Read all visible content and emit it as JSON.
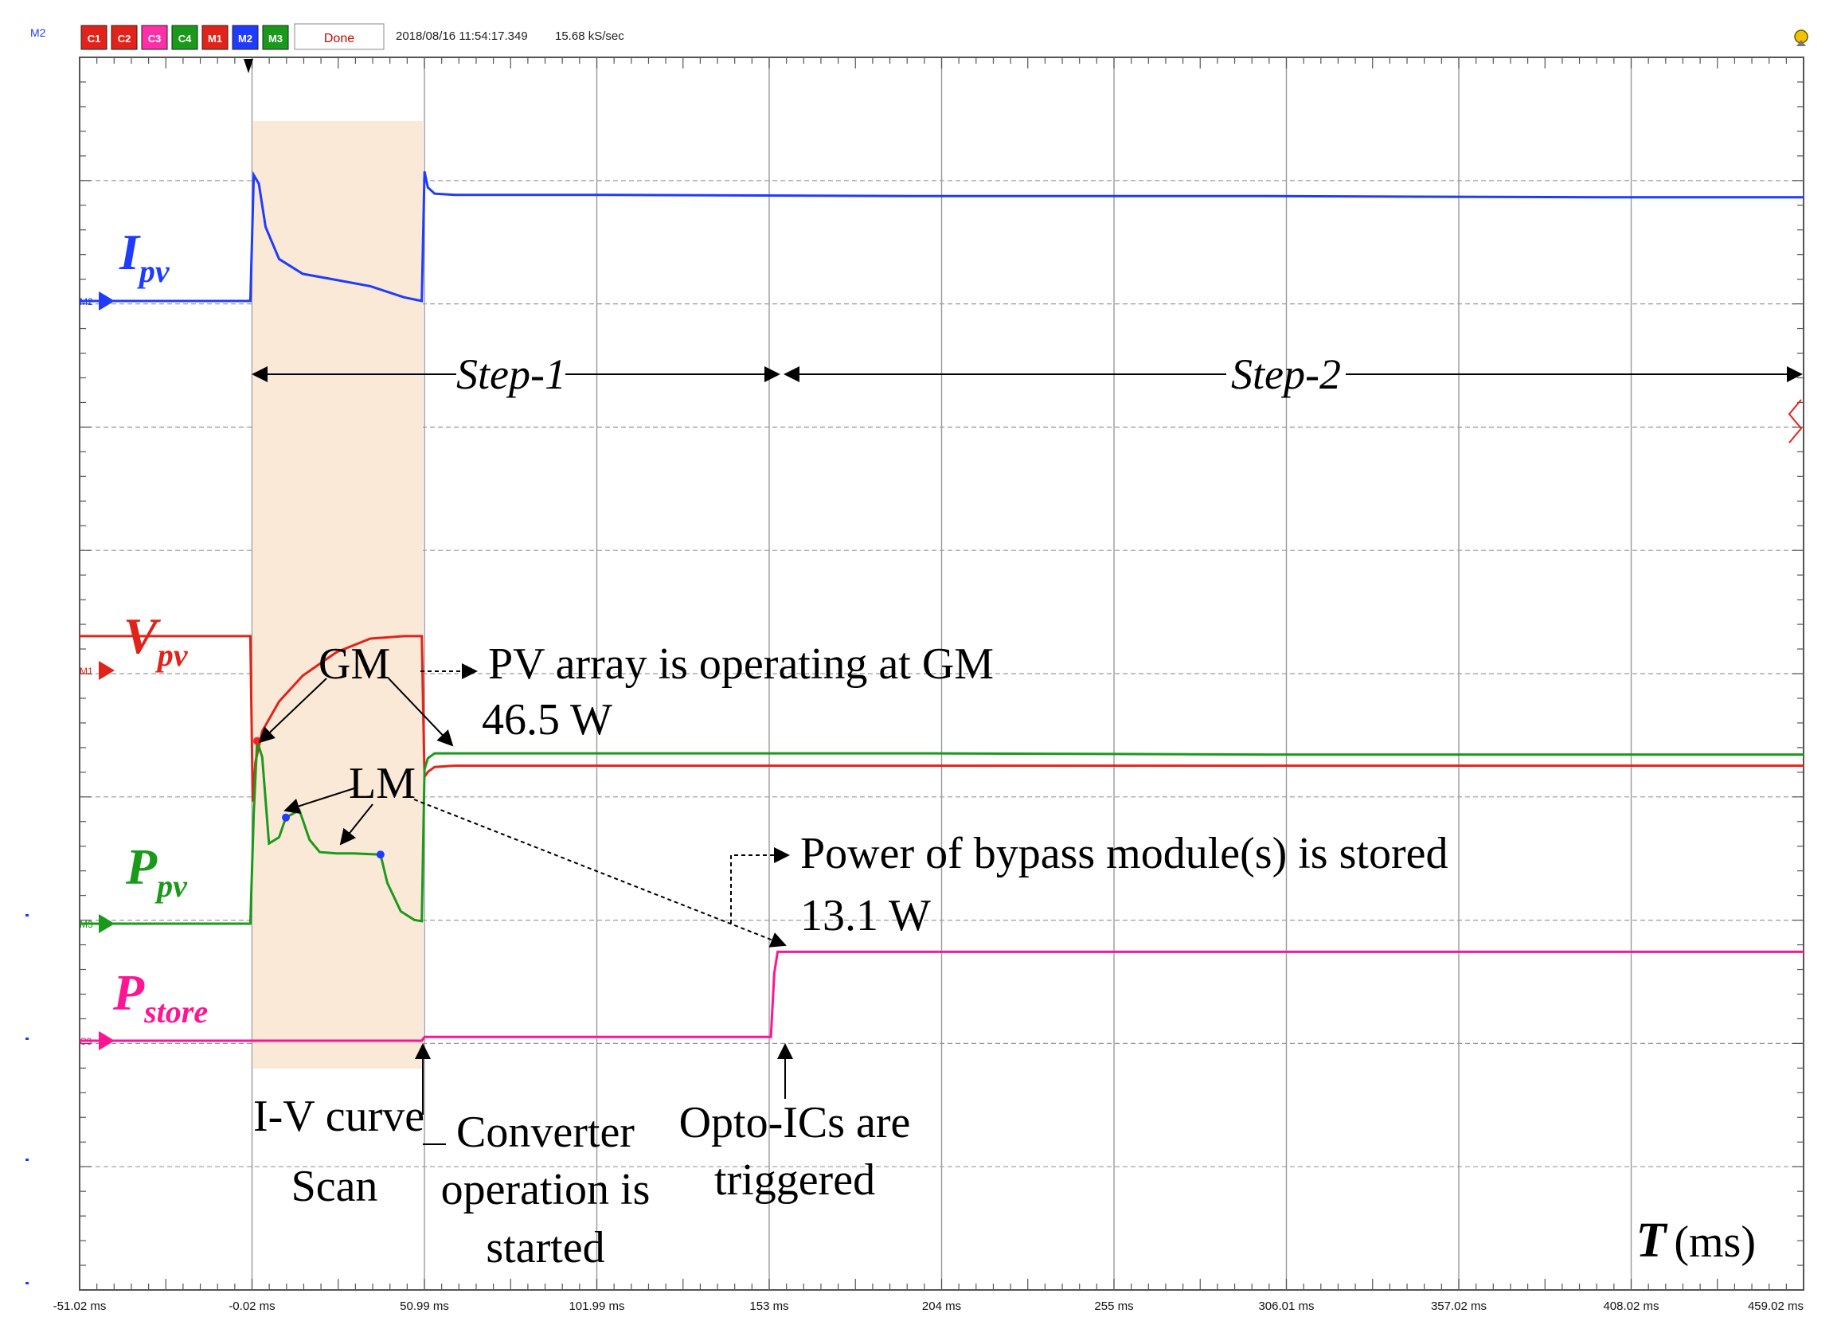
{
  "toolbar": {
    "top_label": "M2",
    "buttons": [
      {
        "label": "C1",
        "color": "#e2231a"
      },
      {
        "label": "C2",
        "color": "#e2231a"
      },
      {
        "label": "C3",
        "color": "#ff2fa8"
      },
      {
        "label": "C4",
        "color": "#1a9a1a"
      },
      {
        "label": "M1",
        "color": "#e2231a"
      },
      {
        "label": "M2",
        "color": "#1f3bff"
      },
      {
        "label": "M3",
        "color": "#1a9a1a"
      }
    ],
    "status": "Done",
    "timestamp": "2018/08/16 11:54:17.349",
    "sample_rate": "15.68 kS/sec"
  },
  "chart_data": {
    "type": "line",
    "x_ticks": [
      "-51.02 ms",
      "-0.02 ms",
      "50.99 ms",
      "101.99 ms",
      "153 ms",
      "204 ms",
      "255 ms",
      "306.01 ms",
      "357.02 ms",
      "408.02 ms",
      "459.02 ms"
    ],
    "xlim": [
      -51.02,
      459.02
    ],
    "x_unit": "ms",
    "grid": true,
    "series": [
      {
        "name": "I",
        "sub": "pv",
        "color": "#1f3bff",
        "marker": "M2",
        "x": [
          -51.02,
          -0.5,
          0.5,
          2,
          4,
          8,
          15,
          25,
          35,
          45,
          50.2,
          51,
          52,
          54,
          60,
          100,
          200,
          300,
          400,
          459.02
        ],
        "y": [
          0,
          0,
          1.02,
          0.95,
          0.6,
          0.34,
          0.22,
          0.17,
          0.12,
          0.03,
          0,
          1.05,
          0.92,
          0.87,
          0.86,
          0.86,
          0.85,
          0.85,
          0.84,
          0.84
        ]
      },
      {
        "name": "V",
        "sub": "pv",
        "color": "#e2231a",
        "marker": "M1",
        "x": [
          -51.02,
          -0.5,
          0.2,
          1,
          3,
          8,
          15,
          25,
          35,
          45,
          50.2,
          51,
          52,
          54,
          60,
          100,
          200,
          300,
          400,
          459.02
        ],
        "y": [
          1.62,
          1.62,
          0.28,
          0.6,
          0.85,
          1.09,
          1.3,
          1.49,
          1.6,
          1.62,
          1.62,
          0.48,
          0.52,
          0.56,
          0.57,
          0.57,
          0.57,
          0.57,
          0.57,
          0.57
        ]
      },
      {
        "name": "P",
        "sub": "pv",
        "color": "#1a9a1a",
        "marker": "M3",
        "x": [
          -51.02,
          -0.5,
          0.5,
          1.5,
          3,
          5,
          8,
          10,
          14,
          17,
          20,
          25,
          30,
          38,
          40,
          44,
          48,
          50.2,
          51,
          52,
          54,
          60,
          100,
          200,
          300,
          400,
          459.02
        ],
        "y": [
          0,
          0,
          0.9,
          1.48,
          1.35,
          0.65,
          0.7,
          0.86,
          0.92,
          0.68,
          0.58,
          0.57,
          0.57,
          0.56,
          0.33,
          0.1,
          0.03,
          0.02,
          1.25,
          1.34,
          1.38,
          1.38,
          1.38,
          1.38,
          1.37,
          1.37,
          1.37
        ]
      },
      {
        "name": "P",
        "sub": "store",
        "color": "#ff1493",
        "marker": "C3",
        "x": [
          -51.02,
          50.2,
          51,
          100,
          153.5,
          154.5,
          155.5,
          200,
          300,
          400,
          459.02
        ],
        "y": [
          0,
          0,
          0.03,
          0.03,
          0.03,
          0.55,
          0.72,
          0.72,
          0.72,
          0.72,
          0.72
        ]
      }
    ],
    "annotations": {
      "step1": "Step-1",
      "step2": "Step-2",
      "gm": "GM",
      "lm": "LM",
      "pv_gm_line1": "PV array is operating at GM",
      "pv_gm_line2": "46.5 W",
      "bypass_line1": "Power of bypass module(s) is stored",
      "bypass_line2": "13.1 W",
      "iv_line1": "I-V curve",
      "iv_line2": "Scan",
      "conv_line1": "Converter",
      "conv_line2": "operation is",
      "conv_line3": "started",
      "opto_line1": "Opto-ICs are",
      "opto_line2": "triggered",
      "axis_T": "T",
      "axis_unit": "(ms)"
    }
  }
}
